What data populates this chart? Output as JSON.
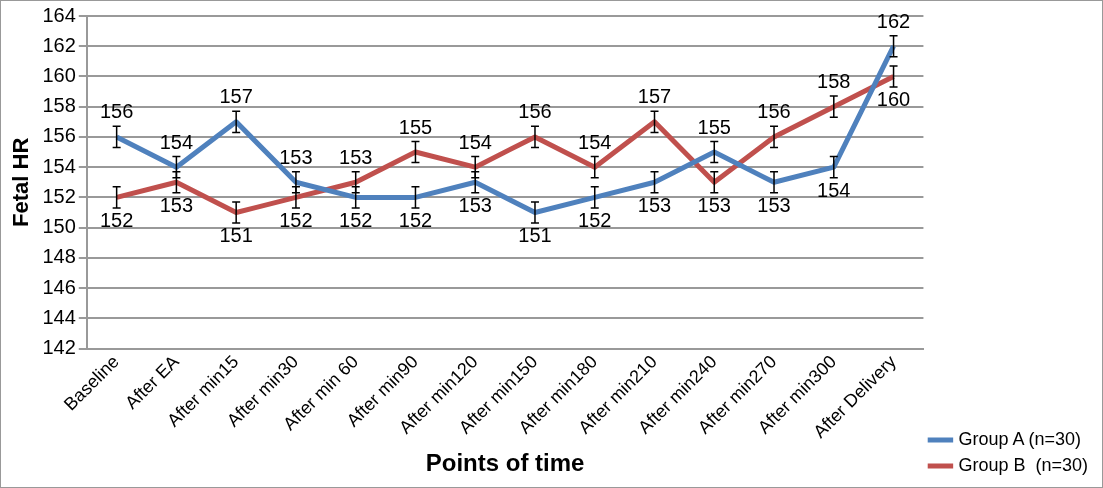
{
  "chart_data": {
    "type": "line",
    "xlabel": "Points of time",
    "ylabel": "Fetal HR",
    "categories": [
      "Baseline",
      "After EA",
      "After min15",
      "After min30",
      "After min 60",
      "After min90",
      "After min120",
      "After min150",
      "After min180",
      "After min210",
      "After min240",
      "After min270",
      "After min300",
      "After Delivery"
    ],
    "series": [
      {
        "name": "Group A (n=30)",
        "color": "#4f81bd",
        "values": [
          156,
          154,
          157,
          153,
          152,
          152,
          153,
          151,
          152,
          153,
          155,
          153,
          154,
          162
        ],
        "errors": [
          0.7,
          0.7,
          0.7,
          0.7,
          0.7,
          0.7,
          0.7,
          0.7,
          0.7,
          0.7,
          0.7,
          0.7,
          0.7,
          0.7
        ]
      },
      {
        "name": "Group B  (n=30)",
        "color": "#c0504d",
        "values": [
          152,
          153,
          151,
          152,
          153,
          155,
          154,
          156,
          154,
          157,
          153,
          156,
          158,
          160
        ],
        "errors": [
          0.7,
          0.7,
          0.7,
          0.7,
          0.7,
          0.7,
          0.7,
          0.7,
          0.7,
          0.7,
          0.7,
          0.7,
          0.7,
          0.7
        ]
      }
    ],
    "ylim": [
      142,
      164
    ],
    "yticks": [
      142,
      144,
      146,
      148,
      150,
      152,
      154,
      156,
      158,
      160,
      162,
      164
    ],
    "grid": "y",
    "legend": "bottom right",
    "data_labels": true,
    "marker": "none",
    "line_style": "solid"
  }
}
